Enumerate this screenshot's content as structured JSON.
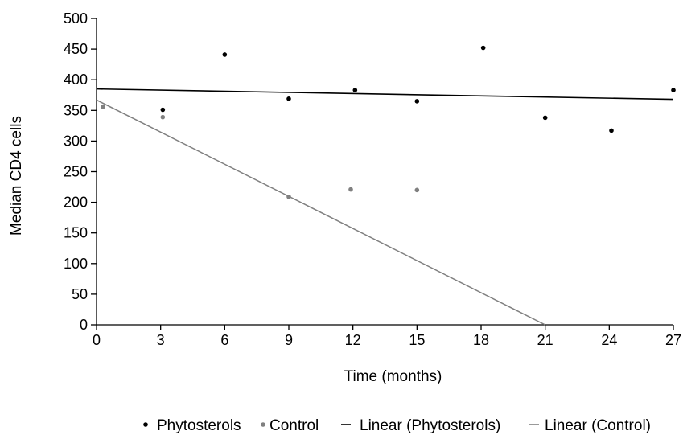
{
  "chart_data": {
    "type": "scatter",
    "title": "",
    "xlabel": "Time (months)",
    "ylabel": "Median CD4 cells",
    "xlim": [
      0,
      27
    ],
    "ylim": [
      0,
      500
    ],
    "x_ticks": [
      "0",
      "3",
      "6",
      "9",
      "12",
      "15",
      "18",
      "21",
      "24",
      "27"
    ],
    "y_ticks": [
      "0",
      "50",
      "100",
      "150",
      "200",
      "250",
      "300",
      "350",
      "400",
      "450",
      "500"
    ],
    "grid": false,
    "legend_position": "bottom",
    "series": [
      {
        "name": "Phytosterols",
        "kind": "points",
        "color": "#000000",
        "x": [
          3.1,
          6.0,
          9.0,
          12.1,
          15.0,
          18.1,
          21.0,
          24.1,
          27.0
        ],
        "y": [
          351,
          441,
          369,
          383,
          365,
          452,
          338,
          317,
          383
        ]
      },
      {
        "name": "Control",
        "kind": "points",
        "color": "#808080",
        "x": [
          0.3,
          3.1,
          9.0,
          11.9,
          15.0
        ],
        "y": [
          356,
          339,
          209,
          221,
          220
        ]
      },
      {
        "name": "Linear (Phytosterols)",
        "kind": "trendline",
        "color": "#000000",
        "x": [
          0,
          27
        ],
        "y": [
          385,
          368
        ]
      },
      {
        "name": "Linear (Control)",
        "kind": "trendline",
        "color": "#808080",
        "x": [
          0,
          21
        ],
        "y": [
          367,
          0
        ]
      }
    ],
    "legend": [
      {
        "label": "Phytosterols",
        "symbol": "•"
      },
      {
        "label": "Control",
        "symbol": "•"
      },
      {
        "label": "Linear (Phytosterols)",
        "symbol": "−"
      },
      {
        "label": "Linear (Control)",
        "symbol": "−"
      }
    ]
  }
}
